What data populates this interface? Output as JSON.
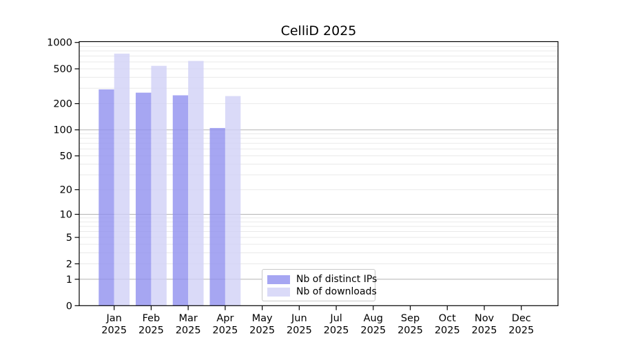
{
  "chart_data": {
    "type": "bar",
    "title": "CelliD 2025",
    "year_label": "2025",
    "categories": [
      "Jan",
      "Feb",
      "Mar",
      "Apr",
      "May",
      "Jun",
      "Jul",
      "Aug",
      "Sep",
      "Oct",
      "Nov",
      "Dec"
    ],
    "series": [
      {
        "name": "Nb of distinct IPs",
        "color": "#a6a6f2",
        "values": [
          291,
          267,
          249,
          105,
          null,
          null,
          null,
          null,
          null,
          null,
          null,
          null
        ]
      },
      {
        "name": "Nb of downloads",
        "color": "#dadaf8",
        "values": [
          746,
          541,
          615,
          244,
          null,
          null,
          null,
          null,
          null,
          null,
          null,
          null
        ]
      }
    ],
    "yticks": [
      0,
      1,
      2,
      5,
      10,
      20,
      50,
      100,
      200,
      500,
      1000
    ],
    "ylim": [
      0,
      1000
    ],
    "yscale": "log10(value+1)",
    "grid": {
      "major_gridline_values": [
        1,
        10,
        100
      ],
      "minor_gridlines": "2-9, 20-90, 200-900 (log steps)",
      "major_color": "#b3b3b3",
      "minor_color": "#e9e9e9"
    },
    "legend_position": "bottom-center"
  }
}
